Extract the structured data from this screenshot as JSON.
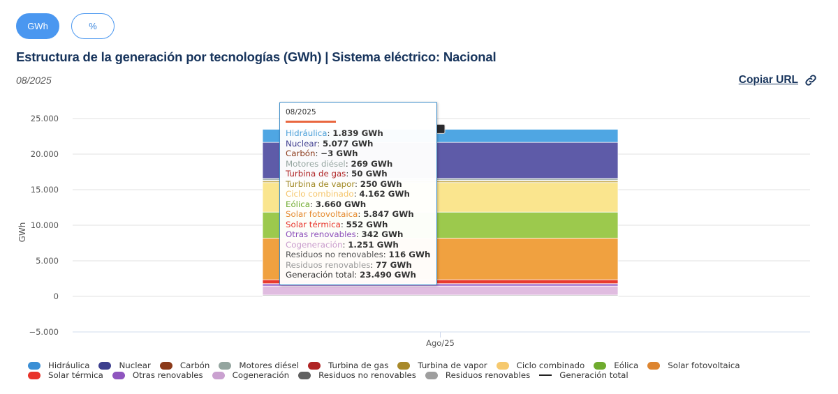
{
  "unit_toggle": {
    "options": [
      "GWh",
      "%"
    ],
    "selected": "GWh"
  },
  "header": {
    "title": "Estructura de la generación por tecnologías (GWh) | Sistema eléctrico: Nacional",
    "period": "08/2025",
    "copy_url_label": "Copiar URL",
    "copy_url_icon": "link-icon"
  },
  "tooltip": {
    "header": "08/2025",
    "rows": [
      {
        "label": "Hidráulica",
        "value": "1.839 GWh",
        "color": "#4a9fd8"
      },
      {
        "label": "Nuclear",
        "value": "5.077 GWh",
        "color": "#3d3d8f"
      },
      {
        "label": "Carbón",
        "value": "−3 GWh",
        "color": "#8b3a1a"
      },
      {
        "label": "Motores diésel",
        "value": "269 GWh",
        "color": "#95a5a0"
      },
      {
        "label": "Turbina de gas",
        "value": "50 GWh",
        "color": "#b02525"
      },
      {
        "label": "Turbina de vapor",
        "value": "250 GWh",
        "color": "#a08823"
      },
      {
        "label": "Ciclo combinado",
        "value": "4.162 GWh",
        "color": "#f5c56a"
      },
      {
        "label": "Eólica",
        "value": "3.660 GWh",
        "color": "#6eaa2c"
      },
      {
        "label": "Solar fotovoltaica",
        "value": "5.847 GWh",
        "color": "#e68a2e"
      },
      {
        "label": "Solar térmica",
        "value": "552 GWh",
        "color": "#e8342a"
      },
      {
        "label": "Otras renovables",
        "value": "342 GWh",
        "color": "#8e4fbb"
      },
      {
        "label": "Cogeneración",
        "value": "1.251 GWh",
        "color": "#c99ccd"
      },
      {
        "label": "Residuos no renovables",
        "value": "116 GWh",
        "color": "#555555"
      },
      {
        "label": "Residuos renovables",
        "value": "77 GWh",
        "color": "#999999"
      },
      {
        "label": "Generación total",
        "value": "23.490 GWh",
        "color": "#333333"
      }
    ]
  },
  "chart_data": {
    "type": "bar",
    "stacked": true,
    "title": "Estructura de la generación por tecnologías (GWh) | Sistema eléctrico: Nacional",
    "xlabel": "",
    "ylabel": "GWh",
    "categories": [
      "Ago/25"
    ],
    "ylim": [
      -5000,
      25000
    ],
    "yticks": [
      -5000,
      0,
      5000,
      10000,
      15000,
      20000,
      25000
    ],
    "ytick_labels": [
      "−5.000",
      "0",
      "5.000",
      "10.000",
      "15.000",
      "20.000",
      "25.000"
    ],
    "grid": true,
    "legend_position": "bottom-left",
    "series": [
      {
        "name": "Hidráulica",
        "values": [
          1839
        ],
        "color": "#4fa6e3",
        "legend_color": "#3b8fd5"
      },
      {
        "name": "Nuclear",
        "values": [
          5077
        ],
        "color": "#5e5ba8",
        "legend_color": "#3d3f8e"
      },
      {
        "name": "Carbón",
        "values": [
          -3
        ],
        "color": "#8b3a1a",
        "legend_color": "#8b3a1a"
      },
      {
        "name": "Motores diésel",
        "values": [
          269
        ],
        "color": "#a6b4b0",
        "legend_color": "#94a59f"
      },
      {
        "name": "Turbina de gas",
        "values": [
          50
        ],
        "color": "#b02525",
        "legend_color": "#b02525"
      },
      {
        "name": "Turbina de vapor",
        "values": [
          250
        ],
        "color": "#c4a84a",
        "legend_color": "#a8892a"
      },
      {
        "name": "Ciclo combinado",
        "values": [
          4162
        ],
        "color": "#fae58e",
        "legend_color": "#f6c96e"
      },
      {
        "name": "Eólica",
        "values": [
          3660
        ],
        "color": "#9cc94d",
        "legend_color": "#6fab2e"
      },
      {
        "name": "Solar fotovoltaica",
        "values": [
          5847
        ],
        "color": "#f0a140",
        "legend_color": "#dd8530"
      },
      {
        "name": "Solar térmica",
        "values": [
          552
        ],
        "color": "#e83a2e",
        "legend_color": "#e8342a"
      },
      {
        "name": "Otras renovables",
        "values": [
          342
        ],
        "color": "#a77ad0",
        "legend_color": "#8f55bf"
      },
      {
        "name": "Cogeneración",
        "values": [
          1251
        ],
        "color": "#e0bce0",
        "legend_color": "#caa1d0"
      },
      {
        "name": "Residuos no renovables",
        "values": [
          116
        ],
        "color": "#6a6a6a",
        "legend_color": "#606060"
      },
      {
        "name": "Residuos renovables",
        "values": [
          77
        ],
        "color": "#aaaaaa",
        "legend_color": "#9e9e9e"
      }
    ],
    "line_series": [
      {
        "name": "Generación total",
        "values": [
          23490
        ],
        "color": "#222222"
      }
    ]
  },
  "legend": {
    "rows": [
      [
        "Hidráulica",
        "Nuclear",
        "Carbón",
        "Motores diésel",
        "Turbina de gas",
        "Turbina de vapor",
        "Ciclo combinado",
        "Eólica",
        "Solar fotovoltaica"
      ],
      [
        "Solar térmica",
        "Otras renovables",
        "Cogeneración",
        "Residuos no renovables",
        "Residuos renovables",
        "Generación total"
      ]
    ]
  }
}
